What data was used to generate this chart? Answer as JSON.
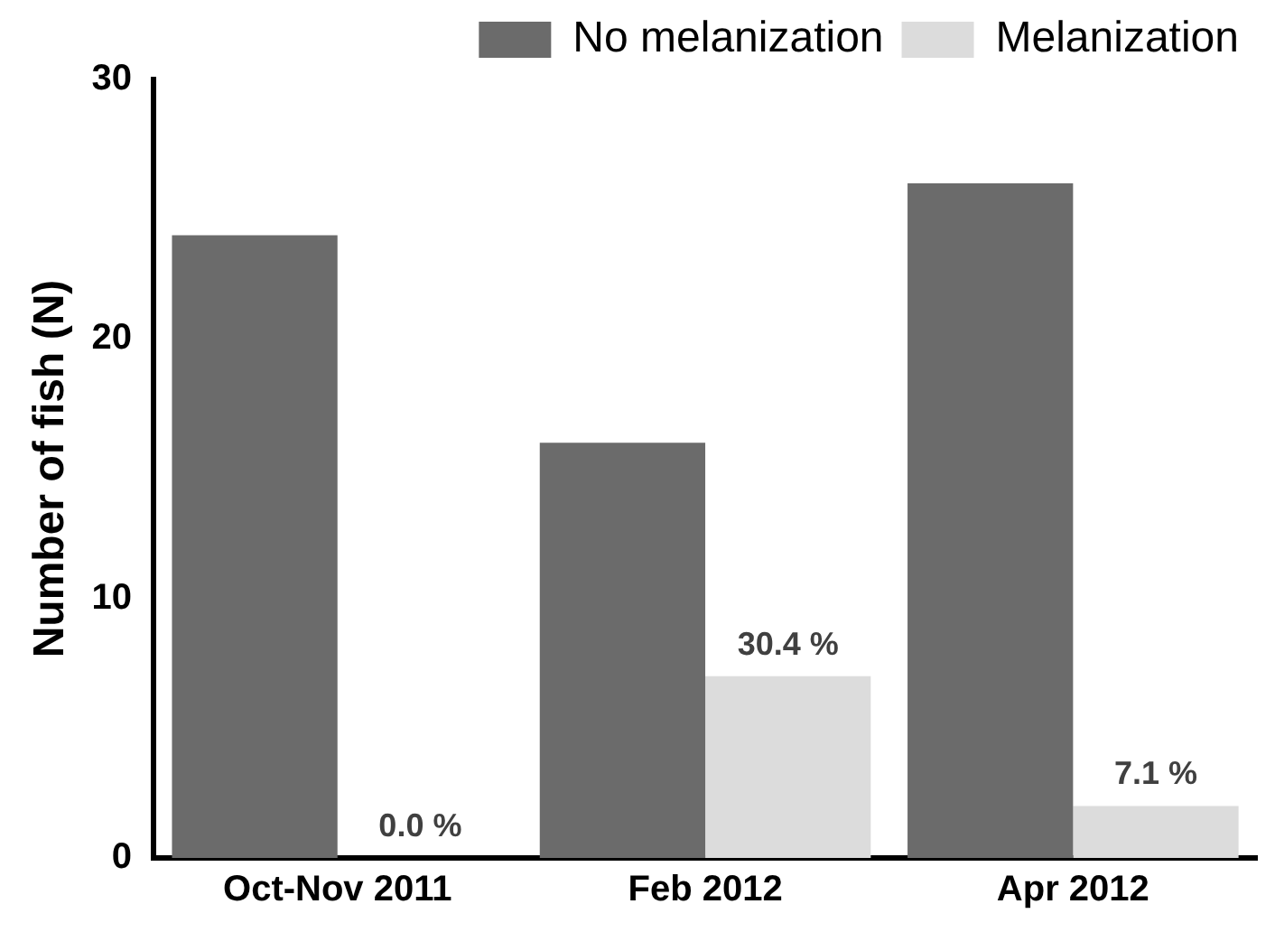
{
  "chart_data": {
    "type": "bar",
    "ylabel": "Number of fish (N)",
    "categories": [
      "Oct-Nov 2011",
      "Feb 2012",
      "Apr 2012"
    ],
    "series": [
      {
        "name": "No melanization",
        "color": "#6b6b6b",
        "values": [
          24,
          16,
          26
        ]
      },
      {
        "name": "Melanization",
        "color": "#dcdcdc",
        "values": [
          0,
          7,
          2
        ]
      }
    ],
    "annotations": [
      {
        "text": "0.0 %",
        "x": "Oct-Nov 2011",
        "y": 0
      },
      {
        "text": "30.4 %",
        "x": "Feb 2012",
        "y": 7
      },
      {
        "text": "7.1 %",
        "x": "Apr 2012",
        "y": 2
      }
    ],
    "ylim": [
      0,
      30
    ],
    "yticks": [
      0,
      10,
      20,
      30
    ],
    "grid": false,
    "legend": "top right"
  }
}
